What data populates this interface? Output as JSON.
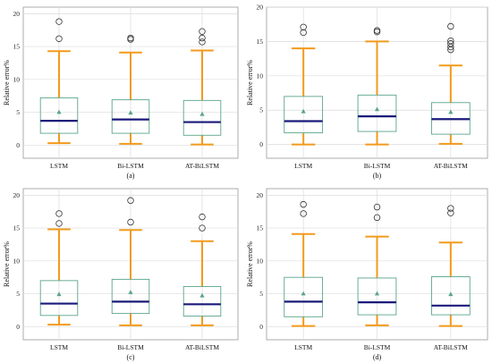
{
  "colors": {
    "whisker": "#f29a1c",
    "box": "#5aa58a",
    "median": "#1a1a7a",
    "mean": "#5aa58a",
    "grid": "#dcdcdc",
    "outlier": "#333333",
    "frame": "#9a9a9a"
  },
  "chart_data": [
    {
      "type": "box",
      "panel_label": "(a)",
      "ylabel": "Relative error%",
      "ylim": [
        -2,
        21
      ],
      "yticks": [
        0,
        5,
        10,
        15,
        20
      ],
      "grid": true,
      "categories": [
        "LSTM",
        "Bi-LSTM",
        "AT-BiLSTM"
      ],
      "boxes": [
        {
          "whislo": 0.3,
          "q1": 1.8,
          "med": 3.7,
          "mean": 5.0,
          "q3": 7.2,
          "whishi": 14.3,
          "fliers": [
            16.2,
            18.8
          ]
        },
        {
          "whislo": 0.2,
          "q1": 1.8,
          "med": 3.9,
          "mean": 4.9,
          "q3": 6.9,
          "whishi": 14.1,
          "fliers": [
            16.1,
            16.3
          ]
        },
        {
          "whislo": 0.1,
          "q1": 1.5,
          "med": 3.5,
          "mean": 4.7,
          "q3": 6.8,
          "whishi": 14.4,
          "fliers": [
            15.7,
            16.3,
            17.3
          ]
        }
      ]
    },
    {
      "type": "box",
      "panel_label": "(b)",
      "ylabel": "Relative error%",
      "ylim": [
        -2,
        20
      ],
      "yticks": [
        0,
        5,
        10,
        15,
        20
      ],
      "grid": true,
      "categories": [
        "LSTM",
        "Bi-LSTM",
        "AT-BiLSTM"
      ],
      "boxes": [
        {
          "whislo": 0.0,
          "q1": 1.7,
          "med": 3.4,
          "mean": 4.8,
          "q3": 7.0,
          "whishi": 14.0,
          "fliers": [
            16.3,
            17.1
          ]
        },
        {
          "whislo": 0.0,
          "q1": 1.9,
          "med": 4.1,
          "mean": 5.1,
          "q3": 7.2,
          "whishi": 15.0,
          "fliers": [
            16.4,
            16.6
          ]
        },
        {
          "whislo": 0.1,
          "q1": 1.5,
          "med": 3.7,
          "mean": 4.7,
          "q3": 6.1,
          "whishi": 11.5,
          "fliers": [
            13.8,
            14.2,
            14.7,
            15.1,
            17.2
          ]
        }
      ]
    },
    {
      "type": "box",
      "panel_label": "(c)",
      "ylabel": "Relative error%",
      "ylim": [
        -2,
        21
      ],
      "yticks": [
        0,
        5,
        10,
        15,
        20
      ],
      "grid": true,
      "categories": [
        "LSTM",
        "Bi-LSTM",
        "AT-BiLSTM"
      ],
      "boxes": [
        {
          "whislo": 0.3,
          "q1": 1.7,
          "med": 3.5,
          "mean": 4.9,
          "q3": 7.0,
          "whishi": 14.8,
          "fliers": [
            15.7,
            17.2
          ]
        },
        {
          "whislo": 0.2,
          "q1": 2.0,
          "med": 3.8,
          "mean": 5.2,
          "q3": 7.2,
          "whishi": 14.7,
          "fliers": [
            15.9,
            19.2
          ]
        },
        {
          "whislo": 0.2,
          "q1": 1.6,
          "med": 3.4,
          "mean": 4.7,
          "q3": 6.1,
          "whishi": 13.0,
          "fliers": [
            15.0,
            16.7
          ]
        }
      ]
    },
    {
      "type": "box",
      "panel_label": "(d)",
      "ylabel": "Relative error%",
      "ylim": [
        -2,
        21
      ],
      "yticks": [
        0,
        5,
        10,
        15,
        20
      ],
      "grid": true,
      "categories": [
        "LSTM",
        "Bi-LSTM",
        "AT-BiLSTM"
      ],
      "boxes": [
        {
          "whislo": 0.1,
          "q1": 1.5,
          "med": 3.8,
          "mean": 5.0,
          "q3": 7.5,
          "whishi": 14.1,
          "fliers": [
            17.2,
            18.6
          ]
        },
        {
          "whislo": 0.2,
          "q1": 1.8,
          "med": 3.7,
          "mean": 5.0,
          "q3": 7.4,
          "whishi": 13.7,
          "fliers": [
            16.6,
            18.2
          ]
        },
        {
          "whislo": 0.1,
          "q1": 1.8,
          "med": 3.2,
          "mean": 4.9,
          "q3": 7.6,
          "whishi": 12.8,
          "fliers": [
            17.3,
            18.0
          ]
        }
      ]
    }
  ]
}
